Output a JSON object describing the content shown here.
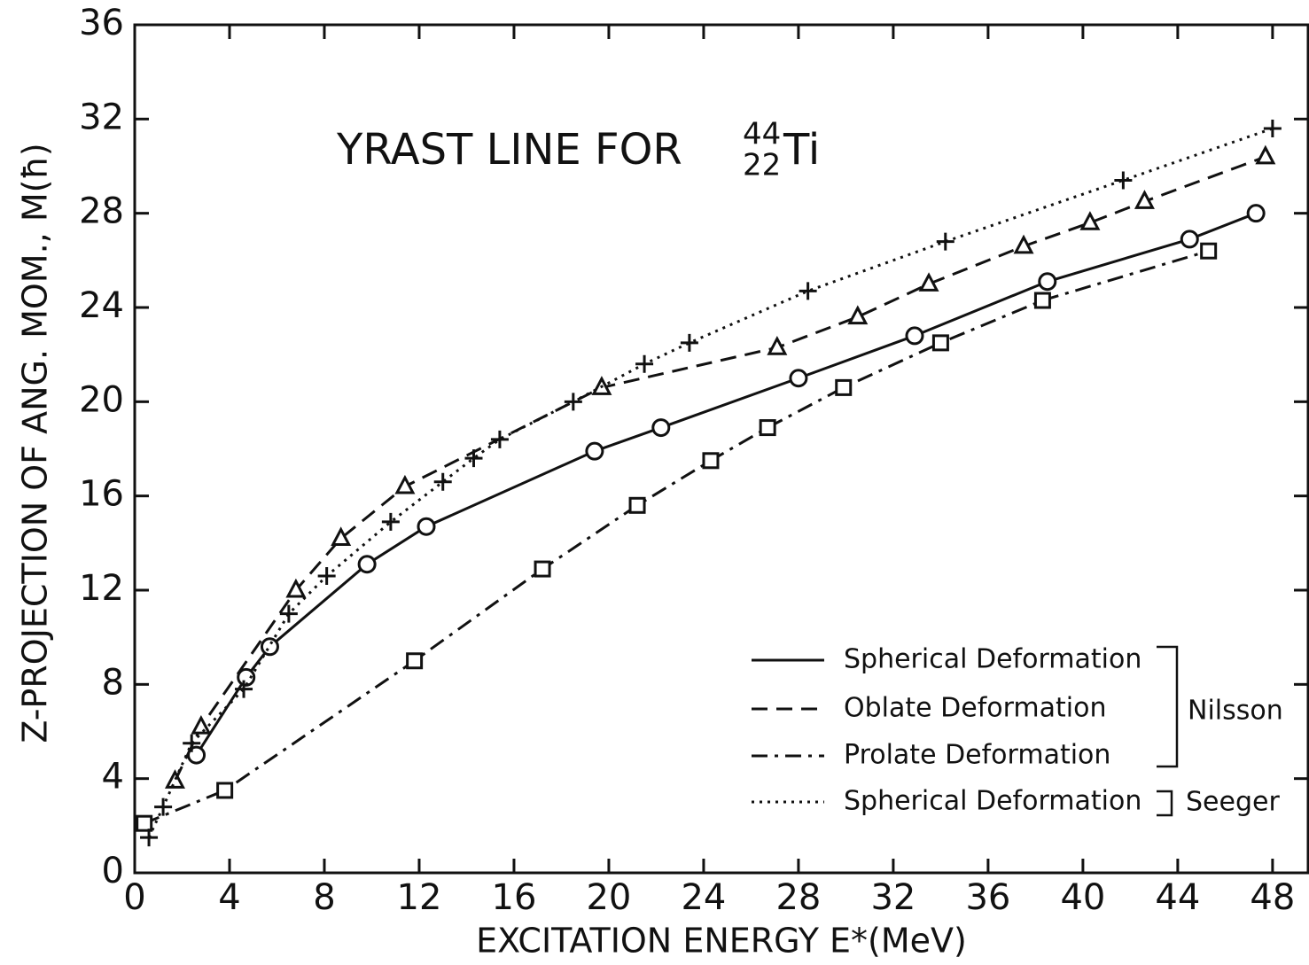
{
  "chart_data": {
    "type": "line",
    "title": "YRAST LINE FOR",
    "title_mass": "44",
    "title_charge": "22",
    "title_element": "Ti",
    "x_label": "EXCITATION ENERGY E*(MeV)",
    "y_label": "Z-PROJECTION OF ANG. MOM., M(ħ)",
    "xlim": [
      0,
      49.5
    ],
    "ylim": [
      0,
      36
    ],
    "xticks": [
      0,
      4,
      8,
      12,
      16,
      20,
      24,
      28,
      32,
      36,
      40,
      44,
      48
    ],
    "yticks": [
      0,
      4,
      8,
      12,
      16,
      20,
      24,
      28,
      32,
      36
    ],
    "series": [
      {
        "name": "Spherical Deformation",
        "color": "#111111",
        "dash": "solid",
        "marker": "circle",
        "x": [
          2.6,
          4.7,
          5.7,
          9.8,
          12.3,
          19.4,
          22.2,
          28.0,
          32.9,
          38.5,
          44.5,
          47.3
        ],
        "values": [
          5.0,
          8.3,
          9.6,
          13.1,
          14.7,
          17.9,
          18.9,
          21.0,
          22.8,
          25.1,
          26.9,
          28.0
        ]
      },
      {
        "name": "Oblate Deformation",
        "color": "#111111",
        "dash": "dashed",
        "marker": "triangle",
        "x": [
          1.7,
          2.8,
          6.8,
          8.7,
          11.4,
          19.7,
          27.1,
          30.5,
          33.5,
          37.5,
          40.3,
          42.6,
          47.7
        ],
        "values": [
          3.9,
          6.2,
          12.0,
          14.2,
          16.4,
          20.6,
          22.3,
          23.6,
          25.0,
          26.6,
          27.6,
          28.5,
          30.4
        ]
      },
      {
        "name": "Prolate Deformation",
        "color": "#111111",
        "dash": "dashdot",
        "marker": "square",
        "x": [
          0.4,
          3.8,
          11.8,
          17.2,
          21.2,
          24.3,
          26.7,
          29.9,
          34.0,
          38.3,
          45.3
        ],
        "values": [
          2.1,
          3.5,
          9.0,
          12.9,
          15.6,
          17.5,
          18.9,
          20.6,
          22.5,
          24.3,
          26.4
        ]
      },
      {
        "name": "Spherical Deformation",
        "color": "#111111",
        "dash": "dotted",
        "marker": "plus",
        "x": [
          0.6,
          1.2,
          2.4,
          4.6,
          6.5,
          8.1,
          10.8,
          13.0,
          14.3,
          15.4,
          18.5,
          21.5,
          23.4,
          28.4,
          34.2,
          41.7,
          48.0
        ],
        "values": [
          1.5,
          2.8,
          5.5,
          7.8,
          11.0,
          12.6,
          14.9,
          16.6,
          17.6,
          18.4,
          20.0,
          21.6,
          22.5,
          24.7,
          26.8,
          29.4,
          31.6
        ]
      }
    ],
    "legend_groups": [
      "Nilsson",
      "Seeger"
    ]
  }
}
